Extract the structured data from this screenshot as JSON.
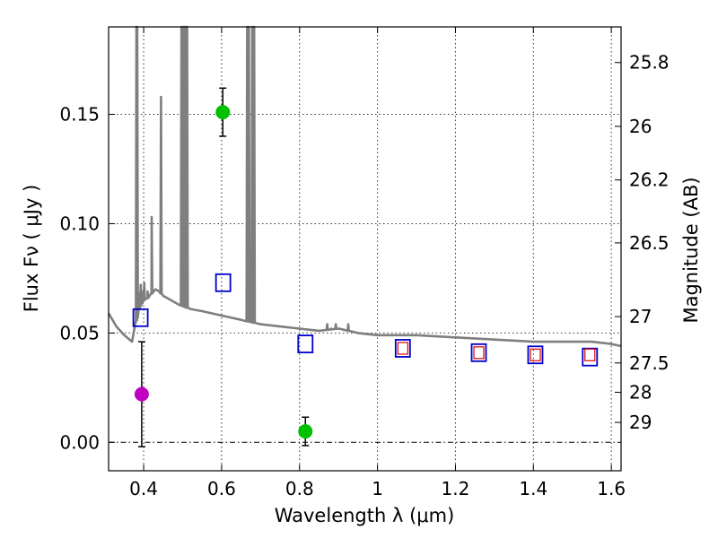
{
  "chart_data": {
    "type": "scatter",
    "title": "",
    "xlabel": "Wavelength  λ (μm)",
    "ylabel": "Flux  Fν  ( μJy )",
    "ylabel_right": "Magnitude (AB)",
    "xlim": [
      0.31,
      1.625
    ],
    "ylim": [
      -0.013,
      0.19
    ],
    "x_ticks": [
      0.4,
      0.6,
      0.8,
      1.0,
      1.2,
      1.4,
      1.6
    ],
    "x_tick_labels": [
      "0.4",
      "0.6",
      "0.8",
      "1",
      "1.2",
      "1.4",
      "1.6"
    ],
    "y_ticks": [
      0.0,
      0.05,
      0.1,
      0.15
    ],
    "y_tick_labels": [
      "0.00",
      "0.05",
      "0.10",
      "0.15"
    ],
    "right_ticks": [
      {
        "label": "25.8",
        "flux": 0.1737
      },
      {
        "label": "26",
        "flux": 0.1445
      },
      {
        "label": "26.2",
        "flux": 0.12
      },
      {
        "label": "26.5",
        "flux": 0.0912
      },
      {
        "label": "27",
        "flux": 0.0575
      },
      {
        "label": "27.5",
        "flux": 0.0363
      },
      {
        "label": "28",
        "flux": 0.0229
      },
      {
        "label": "29",
        "flux": 0.0091
      }
    ],
    "grid": true,
    "series": [
      {
        "name": "Model SED",
        "kind": "line",
        "color": "#7f7f7f",
        "x": [
          0.31,
          0.33,
          0.35,
          0.37,
          0.38,
          0.385,
          0.39,
          0.4,
          0.41,
          0.42,
          0.43,
          0.44,
          0.45,
          0.47,
          0.49,
          0.52,
          0.55,
          0.6,
          0.65,
          0.7,
          0.75,
          0.8,
          0.85,
          0.9,
          0.95,
          1.0,
          1.1,
          1.2,
          1.3,
          1.4,
          1.5,
          1.55,
          1.6,
          1.625
        ],
        "y": [
          0.059,
          0.053,
          0.049,
          0.046,
          0.055,
          0.058,
          0.062,
          0.065,
          0.066,
          0.068,
          0.07,
          0.069,
          0.067,
          0.065,
          0.063,
          0.061,
          0.06,
          0.058,
          0.056,
          0.054,
          0.053,
          0.052,
          0.051,
          0.052,
          0.05,
          0.049,
          0.049,
          0.048,
          0.047,
          0.046,
          0.046,
          0.046,
          0.045,
          0.044
        ],
        "emission_lines": [
          {
            "x": 0.3815,
            "peak": 0.19
          },
          {
            "x": 0.3835,
            "peak": 0.19
          },
          {
            "x": 0.3885,
            "peak": 0.068
          },
          {
            "x": 0.3925,
            "peak": 0.072
          },
          {
            "x": 0.3955,
            "peak": 0.069
          },
          {
            "x": 0.4015,
            "peak": 0.073
          },
          {
            "x": 0.41,
            "peak": 0.069
          },
          {
            "x": 0.4205,
            "peak": 0.103
          },
          {
            "x": 0.4445,
            "peak": 0.158
          },
          {
            "x": 0.497,
            "peak": 0.19
          },
          {
            "x": 0.5015,
            "peak": 0.19
          },
          {
            "x": 0.5055,
            "peak": 0.19
          },
          {
            "x": 0.5085,
            "peak": 0.19
          },
          {
            "x": 0.5115,
            "peak": 0.19
          },
          {
            "x": 0.6655,
            "peak": 0.19
          },
          {
            "x": 0.67,
            "peak": 0.19
          },
          {
            "x": 0.6785,
            "peak": 0.19
          },
          {
            "x": 0.6835,
            "peak": 0.19
          },
          {
            "x": 0.871,
            "peak": 0.054
          },
          {
            "x": 0.881,
            "peak": 0.052
          },
          {
            "x": 0.893,
            "peak": 0.054
          },
          {
            "x": 0.903,
            "peak": 0.052
          },
          {
            "x": 0.925,
            "peak": 0.054
          }
        ]
      },
      {
        "name": "Observed flux (green)",
        "kind": "points",
        "color": "#00c000",
        "points": [
          {
            "x": 0.603,
            "y": 0.151,
            "err": 0.011
          },
          {
            "x": 0.815,
            "y": 0.005,
            "err": 0.0065
          }
        ]
      },
      {
        "name": "Observed flux (magenta)",
        "kind": "points",
        "color": "#c000c0",
        "points": [
          {
            "x": 0.395,
            "y": 0.022,
            "err": 0.024
          }
        ]
      },
      {
        "name": "Model photometry (blue squares)",
        "kind": "open_squares",
        "color": "#0000cc",
        "points": [
          {
            "x": 0.392,
            "y": 0.057
          },
          {
            "x": 0.604,
            "y": 0.073
          },
          {
            "x": 0.815,
            "y": 0.045
          },
          {
            "x": 1.065,
            "y": 0.043
          },
          {
            "x": 1.26,
            "y": 0.041
          },
          {
            "x": 1.405,
            "y": 0.04
          },
          {
            "x": 1.545,
            "y": 0.039
          }
        ]
      },
      {
        "name": "Model photometry (red squares)",
        "kind": "open_squares_small",
        "color": "#dd0000",
        "points": [
          {
            "x": 1.065,
            "y": 0.043
          },
          {
            "x": 1.26,
            "y": 0.041
          },
          {
            "x": 1.405,
            "y": 0.04
          },
          {
            "x": 1.545,
            "y": 0.04
          }
        ]
      }
    ]
  }
}
